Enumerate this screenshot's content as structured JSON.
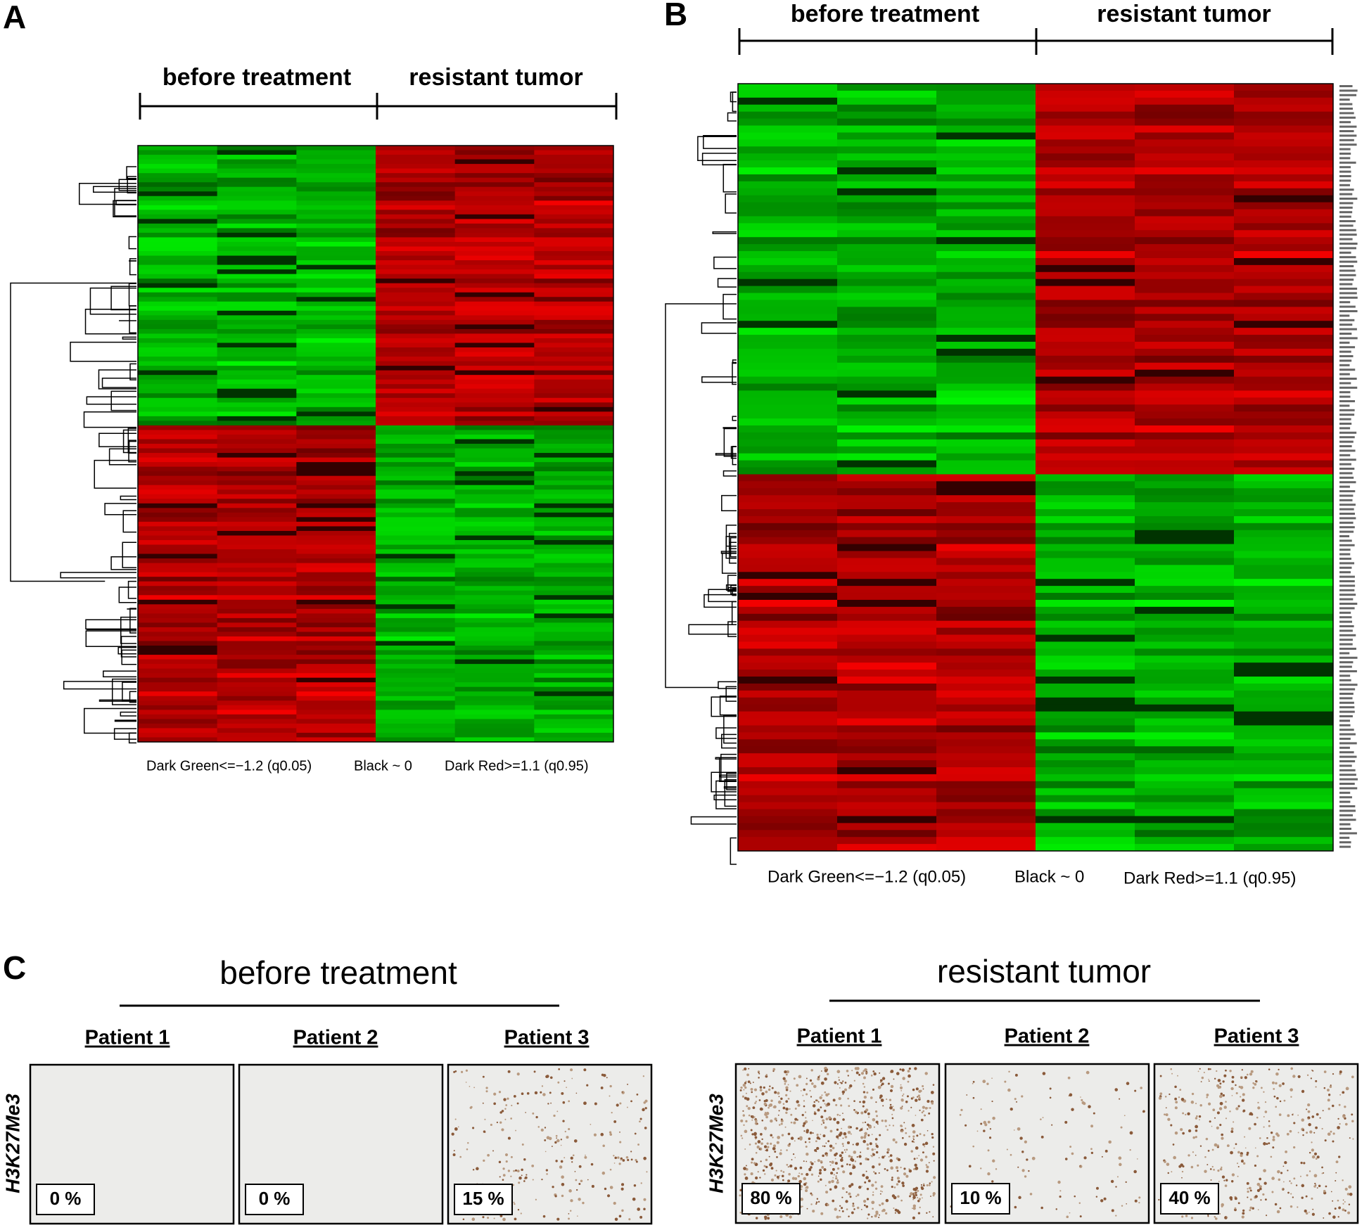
{
  "panels": [
    {
      "letter": "A",
      "groups": [
        "before treatment",
        "resistant tumor"
      ],
      "legend": [
        "Dark Green<=−1.2 (q0.05)",
        "Black ~ 0",
        "Dark Red>=1.1 (q0.95)"
      ]
    },
    {
      "letter": "B",
      "groups": [
        "before treatment",
        "resistant tumor"
      ],
      "legend": [
        "Dark Green<=−1.2 (q0.05)",
        "Black ~ 0",
        "Dark Red>=1.1 (q0.95)"
      ]
    },
    {
      "letter": "C",
      "groups": [
        {
          "title": "before treatment",
          "stain": "H3K27Me3",
          "patients": [
            {
              "name": "Patient 1",
              "score": "0 %"
            },
            {
              "name": "Patient 2",
              "score": "0 %"
            },
            {
              "name": "Patient 3",
              "score": "15 %"
            }
          ]
        },
        {
          "title": "resistant tumor",
          "stain": "H3K27Me3",
          "patients": [
            {
              "name": "Patient 1",
              "score": "80 %"
            },
            {
              "name": "Patient 2",
              "score": "10 %"
            },
            {
              "name": "Patient 3",
              "score": "40 %"
            }
          ]
        }
      ]
    }
  ]
}
